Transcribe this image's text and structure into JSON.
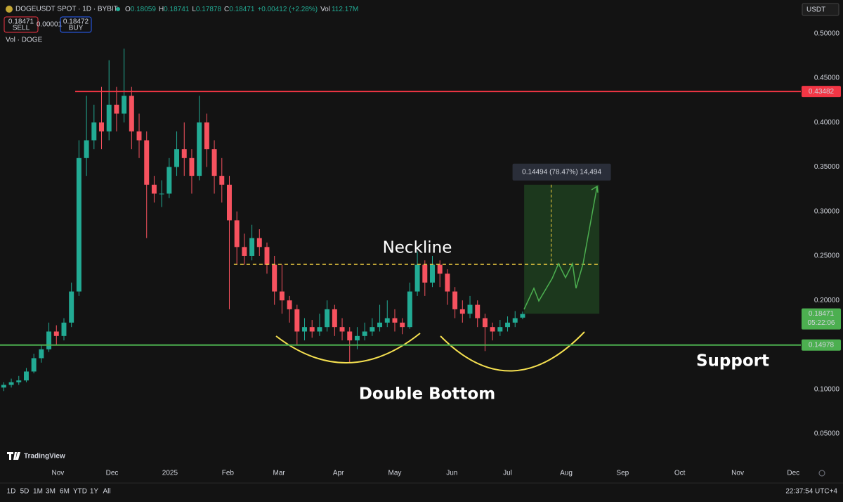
{
  "header": {
    "symbol": "DOGEUSDT SPOT · 1D · BYBIT",
    "open_label": "O",
    "high_label": "H",
    "low_label": "L",
    "close_label": "C",
    "change": "+0.00412 (+2.28%)",
    "vol_label": "Vol",
    "vol": "112.17M",
    "sell": {
      "price": "0.18471",
      "label": "SELL"
    },
    "spread": "0.00001",
    "buy": {
      "price": "0.18472",
      "label": "BUY"
    },
    "volume_indicator": "Vol · DOGE",
    "currency": "USDT"
  },
  "chart_data": {
    "type": "candlestick",
    "categories": [
      null,
      null,
      null,
      null,
      null,
      null,
      null,
      null,
      null,
      null,
      null,
      null,
      null,
      null,
      null,
      null,
      null,
      null,
      null,
      null,
      null,
      null,
      null,
      null,
      null,
      null,
      null,
      null,
      null,
      null,
      null,
      null,
      null,
      null,
      null,
      null,
      null,
      null,
      null,
      null,
      null,
      null,
      null,
      null,
      null,
      null,
      null,
      null,
      null,
      null,
      null,
      null,
      null,
      null,
      null,
      null,
      null,
      null,
      null,
      null,
      null,
      null,
      null,
      null,
      null,
      null,
      null,
      null,
      null,
      null
    ],
    "open": [
      0.102,
      0.105,
      0.108,
      0.11,
      0.12,
      0.135,
      0.145,
      0.165,
      0.16,
      0.175,
      0.21,
      0.36,
      0.38,
      0.4,
      0.39,
      0.42,
      0.41,
      0.43,
      0.39,
      0.38,
      0.33,
      0.32,
      0.32,
      0.35,
      0.37,
      0.36,
      0.34,
      0.4,
      0.37,
      0.34,
      0.33,
      0.29,
      0.26,
      0.25,
      0.27,
      0.26,
      0.24,
      0.21,
      0.2,
      0.19,
      0.165,
      0.17,
      0.165,
      0.17,
      0.19,
      0.17,
      0.165,
      0.155,
      0.16,
      0.165,
      0.17,
      0.175,
      0.18,
      0.175,
      0.17,
      0.21,
      0.24,
      0.22,
      0.24,
      0.23,
      0.21,
      0.19,
      0.185,
      0.195,
      0.18,
      0.17,
      0.165,
      0.17,
      0.175,
      0.18059
    ],
    "high": [
      0.108,
      0.112,
      0.115,
      0.124,
      0.14,
      0.15,
      0.175,
      0.172,
      0.18,
      0.22,
      0.38,
      0.43,
      0.42,
      0.44,
      0.47,
      0.44,
      0.483,
      0.44,
      0.41,
      0.39,
      0.34,
      0.335,
      0.36,
      0.39,
      0.4,
      0.37,
      0.43,
      0.41,
      0.38,
      0.36,
      0.34,
      0.3,
      0.275,
      0.285,
      0.28,
      0.265,
      0.25,
      0.24,
      0.205,
      0.195,
      0.18,
      0.178,
      0.185,
      0.2,
      0.195,
      0.18,
      0.17,
      0.17,
      0.175,
      0.18,
      0.195,
      0.2,
      0.19,
      0.18,
      0.22,
      0.255,
      0.245,
      0.25,
      0.245,
      0.235,
      0.215,
      0.2,
      0.205,
      0.2,
      0.185,
      0.175,
      0.178,
      0.182,
      0.188,
      0.18741
    ],
    "low": [
      0.098,
      0.102,
      0.105,
      0.108,
      0.118,
      0.13,
      0.142,
      0.15,
      0.155,
      0.17,
      0.205,
      0.34,
      0.37,
      0.37,
      0.38,
      0.39,
      0.4,
      0.37,
      0.36,
      0.27,
      0.31,
      0.305,
      0.315,
      0.34,
      0.34,
      0.32,
      0.335,
      0.35,
      0.32,
      0.31,
      0.19,
      0.24,
      0.24,
      0.245,
      0.25,
      0.23,
      0.195,
      0.185,
      0.175,
      0.15,
      0.155,
      0.158,
      0.16,
      0.165,
      0.16,
      0.155,
      0.13,
      0.145,
      0.155,
      0.16,
      0.165,
      0.17,
      0.165,
      0.162,
      0.168,
      0.205,
      0.205,
      0.215,
      0.215,
      0.195,
      0.18,
      0.175,
      0.18,
      0.17,
      0.143,
      0.155,
      0.16,
      0.165,
      0.17,
      0.17878
    ],
    "close": [
      0.105,
      0.108,
      0.11,
      0.12,
      0.135,
      0.145,
      0.165,
      0.16,
      0.175,
      0.21,
      0.36,
      0.38,
      0.4,
      0.39,
      0.42,
      0.41,
      0.43,
      0.39,
      0.38,
      0.33,
      0.32,
      0.32,
      0.35,
      0.37,
      0.36,
      0.34,
      0.4,
      0.37,
      0.34,
      0.33,
      0.29,
      0.26,
      0.25,
      0.27,
      0.26,
      0.24,
      0.21,
      0.2,
      0.19,
      0.165,
      0.17,
      0.165,
      0.17,
      0.19,
      0.17,
      0.165,
      0.155,
      0.16,
      0.165,
      0.17,
      0.175,
      0.18,
      0.175,
      0.17,
      0.21,
      0.24,
      0.22,
      0.24,
      0.23,
      0.21,
      0.19,
      0.185,
      0.195,
      0.18,
      0.17,
      0.165,
      0.17,
      0.175,
      0.18,
      0.18471
    ],
    "up_color": "#22ab94",
    "down_color": "#f7525f",
    "ylim": [
      0.016,
      0.514
    ],
    "yticks": [
      {
        "value": 0.5,
        "label": "0.50000"
      },
      {
        "value": 0.45,
        "label": "0.45000"
      },
      {
        "value": 0.4,
        "label": "0.40000"
      },
      {
        "value": 0.35,
        "label": "0.35000"
      },
      {
        "value": 0.3,
        "label": "0.30000"
      },
      {
        "value": 0.25,
        "label": "0.25000"
      },
      {
        "value": 0.2,
        "label": "0.20000"
      },
      {
        "value": 0.1,
        "label": "0.10000"
      },
      {
        "value": 0.05,
        "label": "0.05000"
      }
    ],
    "xlim": [
      -0.5,
      106
    ],
    "xticks": [
      {
        "value": 7.2,
        "label": "Nov"
      },
      {
        "value": 14.4,
        "label": "Dec"
      },
      {
        "value": 22.1,
        "label": "2025"
      },
      {
        "value": 29.8,
        "label": "Feb"
      },
      {
        "value": 36.6,
        "label": "Mar"
      },
      {
        "value": 44.5,
        "label": "Apr"
      },
      {
        "value": 52.0,
        "label": "May"
      },
      {
        "value": 59.6,
        "label": "Jun"
      },
      {
        "value": 67.0,
        "label": "Jul"
      },
      {
        "value": 74.8,
        "label": "Aug"
      },
      {
        "value": 82.3,
        "label": "Sep"
      },
      {
        "value": 89.9,
        "label": "Oct"
      },
      {
        "value": 97.6,
        "label": "Nov"
      },
      {
        "value": 105.0,
        "label": "Dec"
      }
    ],
    "grid": false,
    "levels": [
      {
        "value": 0.43482,
        "color": "#f23645",
        "start": 9.5
      },
      {
        "value": 0.14978,
        "color": "#4caf50",
        "start": -0.5
      }
    ],
    "neckline": {
      "value": 0.2405,
      "start": 30.6,
      "end": 79.2,
      "color": "#f5d142"
    },
    "projection": {
      "top": 0.33,
      "bottom": 0.185,
      "start": 69.2,
      "end": 79.2,
      "label": "0.14494 (78.47%) 14,494"
    },
    "last_color": "#4caf50",
    "countdown": "05:22:06",
    "annotations": {
      "neckline": "Neckline",
      "support": "Support",
      "pattern": "Double Bottom"
    }
  },
  "footer": {
    "brand": "TradingView",
    "timeframes": [
      "1D",
      "5D",
      "1M",
      "3M",
      "6M",
      "YTD",
      "1Y",
      "All"
    ],
    "clock": "22:37:54 UTC+4"
  }
}
